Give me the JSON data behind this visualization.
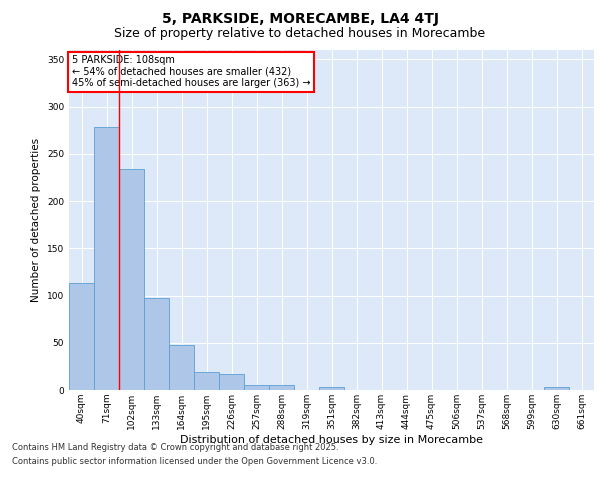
{
  "title": "5, PARKSIDE, MORECAMBE, LA4 4TJ",
  "subtitle": "Size of property relative to detached houses in Morecambe",
  "xlabel": "Distribution of detached houses by size in Morecambe",
  "ylabel": "Number of detached properties",
  "categories": [
    "40sqm",
    "71sqm",
    "102sqm",
    "133sqm",
    "164sqm",
    "195sqm",
    "226sqm",
    "257sqm",
    "288sqm",
    "319sqm",
    "351sqm",
    "382sqm",
    "413sqm",
    "444sqm",
    "475sqm",
    "506sqm",
    "537sqm",
    "568sqm",
    "599sqm",
    "630sqm",
    "661sqm"
  ],
  "values": [
    113,
    278,
    234,
    97,
    48,
    19,
    17,
    5,
    5,
    0,
    3,
    0,
    0,
    0,
    0,
    0,
    0,
    0,
    0,
    3,
    0
  ],
  "bar_color": "#aec6e8",
  "bar_edge_color": "#5a9fd4",
  "annotation_text": "5 PARKSIDE: 108sqm\n← 54% of detached houses are smaller (432)\n45% of semi-detached houses are larger (363) →",
  "vline_x": 2,
  "ylim": [
    0,
    360
  ],
  "yticks": [
    0,
    50,
    100,
    150,
    200,
    250,
    300,
    350
  ],
  "background_color": "#dde8f8",
  "footer_line1": "Contains HM Land Registry data © Crown copyright and database right 2025.",
  "footer_line2": "Contains public sector information licensed under the Open Government Licence v3.0.",
  "title_fontsize": 10,
  "subtitle_fontsize": 9,
  "label_fontsize": 7.5,
  "tick_fontsize": 6.5,
  "footer_fontsize": 6
}
